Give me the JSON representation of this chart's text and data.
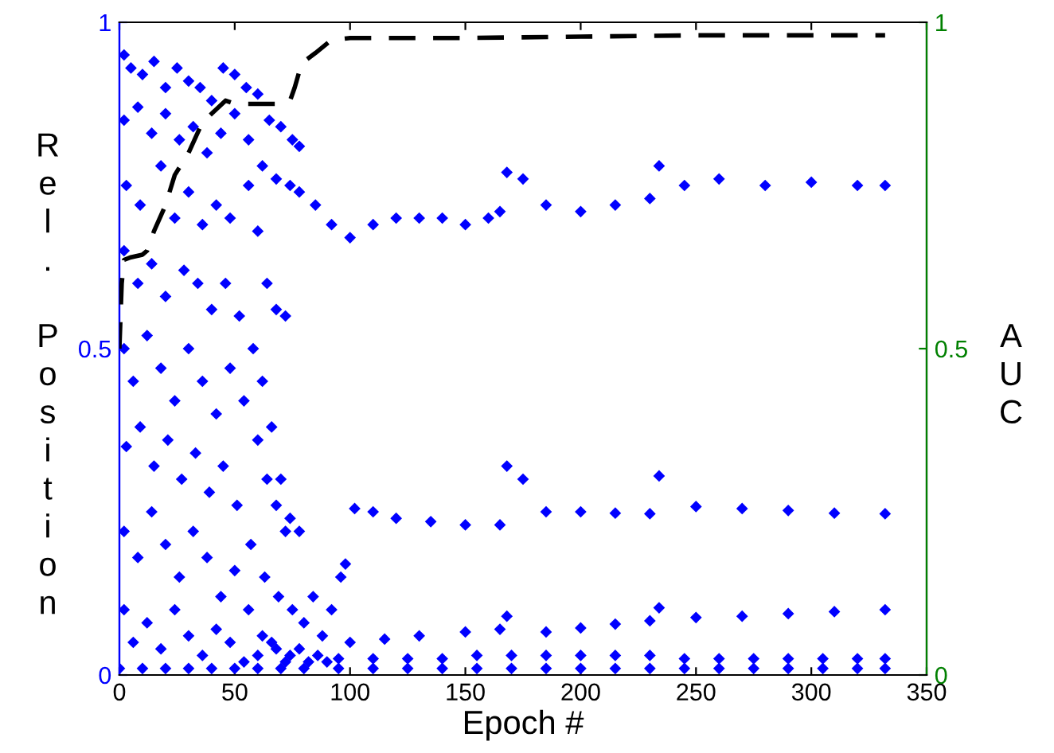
{
  "chart_data": {
    "type": "scatter",
    "xlabel": "Epoch #",
    "ylabel": "Rel. Position",
    "y2label": "AUC",
    "xlim": [
      0,
      350
    ],
    "xticks": [
      0,
      50,
      100,
      150,
      200,
      250,
      300,
      350
    ],
    "ylim": [
      0,
      1
    ],
    "yticks": [
      0,
      0.5,
      1
    ],
    "y2lim": [
      0,
      1
    ],
    "y2ticks": [
      0,
      0.5,
      1
    ],
    "grid": false,
    "legend": false,
    "marker": "diamond",
    "series": [
      {
        "color": "#0000ff",
        "axis": "y",
        "x": [
          2,
          5,
          10,
          15,
          20,
          25,
          30,
          35,
          40,
          45,
          50,
          55,
          60,
          65,
          70,
          75,
          78,
          2,
          8,
          14,
          20,
          26,
          32,
          38,
          44,
          50,
          56,
          62,
          68,
          74,
          78,
          3,
          9,
          18,
          24,
          30,
          36,
          42,
          48,
          56,
          60,
          64,
          68,
          72,
          2,
          8,
          14,
          20,
          28,
          34,
          40,
          46,
          52,
          58,
          62,
          66,
          70,
          74,
          78,
          2,
          6,
          12,
          18,
          24,
          30,
          36,
          42,
          48,
          54,
          60,
          64,
          68,
          72,
          3,
          9,
          15,
          21,
          27,
          33,
          39,
          45,
          51,
          57,
          63,
          69,
          75,
          2,
          8,
          14,
          20,
          26,
          32,
          38,
          44,
          50,
          56,
          62,
          68,
          74,
          80,
          84,
          88,
          92,
          96,
          98,
          2,
          6,
          12,
          18,
          24,
          30,
          36,
          42,
          48,
          54,
          60,
          66,
          72,
          78,
          82,
          86,
          90,
          0,
          10,
          20,
          30,
          40,
          50,
          60,
          70,
          80,
          85,
          92,
          100,
          110,
          120,
          130,
          140,
          150,
          160,
          165,
          168,
          175,
          185,
          200,
          215,
          230,
          234,
          245,
          260,
          280,
          300,
          320,
          332,
          102,
          110,
          120,
          135,
          150,
          165,
          168,
          175,
          185,
          200,
          215,
          230,
          234,
          250,
          270,
          290,
          310,
          332,
          100,
          115,
          130,
          150,
          165,
          168,
          185,
          200,
          215,
          230,
          234,
          250,
          270,
          290,
          310,
          332,
          95,
          110,
          125,
          140,
          155,
          170,
          185,
          200,
          215,
          230,
          245,
          260,
          275,
          290,
          305,
          320,
          332,
          95,
          110,
          125,
          140,
          155,
          170,
          185,
          200,
          215,
          230,
          245,
          260,
          275,
          290,
          305,
          320,
          332
        ],
        "values": [
          0.95,
          0.93,
          0.92,
          0.94,
          0.9,
          0.93,
          0.91,
          0.9,
          0.88,
          0.93,
          0.92,
          0.9,
          0.89,
          0.85,
          0.84,
          0.82,
          0.81,
          0.85,
          0.87,
          0.83,
          0.86,
          0.82,
          0.84,
          0.8,
          0.83,
          0.86,
          0.82,
          0.78,
          0.76,
          0.75,
          0.74,
          0.75,
          0.72,
          0.78,
          0.7,
          0.74,
          0.69,
          0.72,
          0.7,
          0.75,
          0.68,
          0.6,
          0.56,
          0.55,
          0.65,
          0.6,
          0.63,
          0.58,
          0.62,
          0.6,
          0.56,
          0.6,
          0.55,
          0.5,
          0.45,
          0.38,
          0.3,
          0.24,
          0.22,
          0.5,
          0.45,
          0.52,
          0.47,
          0.42,
          0.5,
          0.45,
          0.4,
          0.47,
          0.42,
          0.36,
          0.3,
          0.26,
          0.22,
          0.35,
          0.38,
          0.32,
          0.36,
          0.3,
          0.34,
          0.28,
          0.32,
          0.26,
          0.2,
          0.15,
          0.12,
          0.1,
          0.22,
          0.18,
          0.25,
          0.2,
          0.15,
          0.22,
          0.18,
          0.12,
          0.16,
          0.1,
          0.06,
          0.04,
          0.03,
          0.08,
          0.12,
          0.06,
          0.1,
          0.15,
          0.17,
          0.1,
          0.05,
          0.08,
          0.04,
          0.1,
          0.06,
          0.03,
          0.07,
          0.05,
          0.02,
          0.03,
          0.05,
          0.02,
          0.04,
          0.02,
          0.03,
          0.02,
          0.01,
          0.01,
          0.01,
          0.01,
          0.01,
          0.01,
          0.01,
          0.01,
          0.01,
          0.72,
          0.69,
          0.67,
          0.69,
          0.7,
          0.7,
          0.7,
          0.69,
          0.7,
          0.71,
          0.77,
          0.76,
          0.72,
          0.71,
          0.72,
          0.73,
          0.78,
          0.75,
          0.76,
          0.75,
          0.755,
          0.75,
          0.75,
          0.255,
          0.25,
          0.24,
          0.235,
          0.23,
          0.23,
          0.32,
          0.3,
          0.25,
          0.25,
          0.248,
          0.247,
          0.305,
          0.258,
          0.255,
          0.252,
          0.248,
          0.247,
          0.05,
          0.055,
          0.06,
          0.066,
          0.07,
          0.09,
          0.066,
          0.072,
          0.078,
          0.083,
          0.103,
          0.088,
          0.09,
          0.094,
          0.097,
          0.1,
          0.01,
          0.01,
          0.01,
          0.01,
          0.01,
          0.01,
          0.01,
          0.01,
          0.01,
          0.01,
          0.01,
          0.01,
          0.01,
          0.01,
          0.01,
          0.01,
          0.01,
          0.025,
          0.025,
          0.025,
          0.025,
          0.03,
          0.03,
          0.03,
          0.03,
          0.03,
          0.03,
          0.025,
          0.025,
          0.025,
          0.025,
          0.025,
          0.025,
          0.025
        ]
      },
      {
        "type": "line",
        "color": "#000000",
        "axis": "y2",
        "line_style": "dashed",
        "marker": "none",
        "x": [
          0,
          1,
          2,
          5,
          10,
          12,
          15,
          20,
          24,
          30,
          36,
          40,
          46,
          50,
          60,
          70,
          74,
          76,
          79,
          85,
          92,
          100,
          150,
          200,
          250,
          300,
          332
        ],
        "values": [
          0.5,
          0.6,
          0.636,
          0.64,
          0.644,
          0.65,
          0.68,
          0.72,
          0.766,
          0.8,
          0.847,
          0.86,
          0.88,
          0.875,
          0.875,
          0.875,
          0.88,
          0.9,
          0.937,
          0.953,
          0.973,
          0.976,
          0.976,
          0.978,
          0.98,
          0.98,
          0.98
        ]
      }
    ]
  }
}
